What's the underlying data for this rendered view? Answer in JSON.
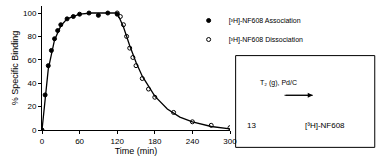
{
  "chart_data": {
    "type": "scatter",
    "x_label": "Time (min)",
    "y_label": "% Specific Binding",
    "xlim": [
      0,
      300
    ],
    "xticks": [
      0,
      60,
      120,
      180,
      240,
      300
    ],
    "ylim": [
      0,
      106
    ],
    "yticks": [
      0,
      20,
      40,
      60,
      80,
      100
    ],
    "grid": false,
    "legend": "top right",
    "series": [
      {
        "name": "[³H]-NF608 Association",
        "color": "#000000",
        "marker": "filled_circle",
        "type": "scatter",
        "x": [
          0,
          5,
          10,
          15,
          20,
          25,
          30,
          40,
          50,
          60,
          75,
          90,
          105,
          120
        ],
        "values": [
          0,
          30,
          55,
          68,
          78,
          85,
          90,
          95,
          97,
          99,
          100,
          98,
          100,
          99
        ]
      },
      {
        "name": "[³H]-NF608 Dissociation",
        "color": "#000000",
        "marker": "open_circle",
        "type": "scatter",
        "x": [
          120,
          125,
          130,
          135,
          140,
          145,
          150,
          160,
          170,
          180,
          210,
          240,
          270,
          300
        ],
        "values": [
          100,
          97,
          90,
          80,
          70,
          62,
          55,
          44,
          35,
          28,
          15,
          7,
          4,
          2
        ]
      },
      {
        "color": "#000000",
        "type": "line",
        "line_style": "solid",
        "x": [
          0,
          10,
          20,
          30,
          40,
          50,
          60,
          80,
          100,
          120
        ],
        "values": [
          0,
          52,
          77,
          89,
          95,
          97,
          99,
          100,
          100,
          100
        ]
      },
      {
        "color": "#000000",
        "type": "line",
        "line_style": "solid",
        "x": [
          120,
          130,
          140,
          150,
          160,
          170,
          180,
          200,
          220,
          240,
          270,
          300
        ],
        "values": [
          100,
          88,
          72,
          58,
          46,
          37,
          29,
          18,
          11,
          7,
          3,
          1
        ]
      }
    ],
    "annotations": {
      "reactant": "13",
      "reagents": "T₂ (g), Pd/C",
      "product": "[³H]-NF608"
    }
  }
}
